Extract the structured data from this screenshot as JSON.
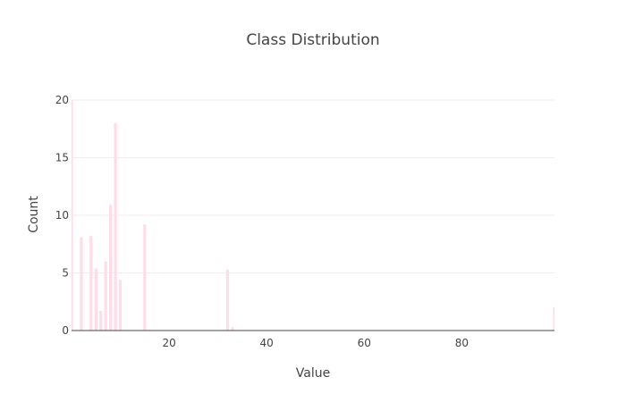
{
  "chart_data": {
    "type": "bar",
    "title": "Class Distribution",
    "xlabel": "Value",
    "ylabel": "Count",
    "xlim": [
      0,
      99
    ],
    "ylim": [
      0,
      20
    ],
    "xticks": [
      20,
      40,
      60,
      80
    ],
    "yticks": [
      0,
      5,
      10,
      15,
      20
    ],
    "bar_color": "#ffdde8",
    "grid": true,
    "series": [
      {
        "x": [
          0,
          2,
          4,
          5,
          6,
          7,
          8,
          9,
          10,
          15,
          32,
          33,
          99
        ],
        "values": [
          20,
          8.1,
          8.2,
          5.4,
          1.7,
          6.0,
          10.9,
          18.0,
          4.4,
          9.2,
          5.3,
          0.3,
          2.0
        ]
      }
    ]
  }
}
